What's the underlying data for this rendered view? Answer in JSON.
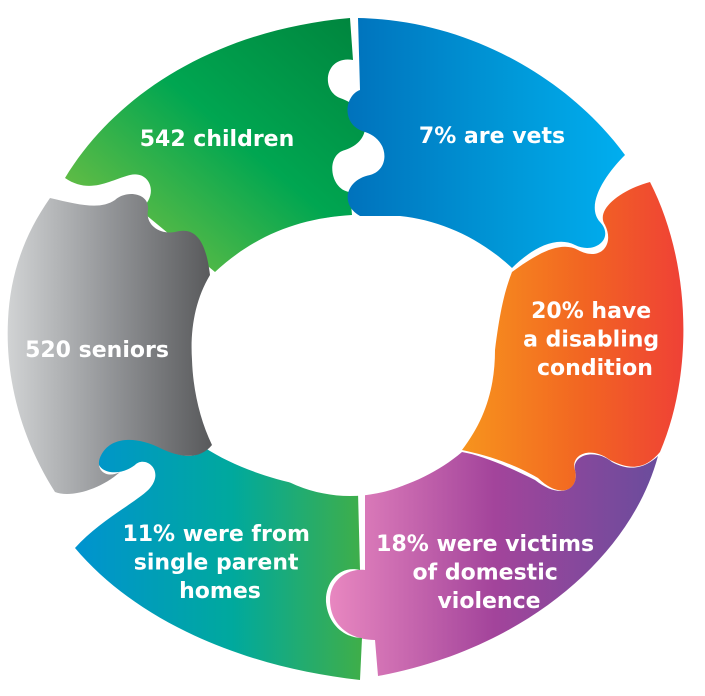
{
  "segments": [
    {
      "id": "children",
      "lines": [
        "542 children"
      ],
      "colors": [
        "#8dc63f",
        "#00a651",
        "#00843d"
      ]
    },
    {
      "id": "vets",
      "lines": [
        "7% are vets"
      ],
      "colors": [
        "#0072bc",
        "#0096d6",
        "#00aeef"
      ]
    },
    {
      "id": "disabling",
      "lines": [
        "20% have",
        "a disabling",
        "condition"
      ],
      "colors": [
        "#f7941d",
        "#f26522",
        "#ef4136"
      ]
    },
    {
      "id": "domestic-violence",
      "lines": [
        "18% were victims",
        "of domestic",
        "violence"
      ],
      "colors": [
        "#e887c0",
        "#a3449b",
        "#6a4c9c"
      ]
    },
    {
      "id": "single-parent",
      "lines": [
        "11% were from",
        "single parent",
        "homes"
      ],
      "colors": [
        "#0093d0",
        "#00a99d",
        "#3fae49"
      ]
    },
    {
      "id": "seniors",
      "lines": [
        "520 seniors"
      ],
      "colors": [
        "#d1d3d4",
        "#939598",
        "#58595b"
      ]
    }
  ]
}
